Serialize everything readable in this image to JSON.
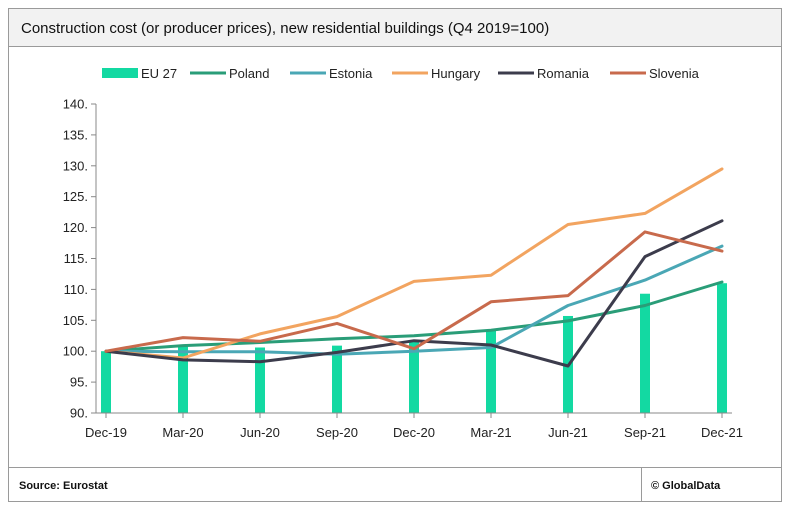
{
  "header": {
    "title": "Construction cost (or producer prices), new residential buildings (Q4 2019=100)"
  },
  "footer": {
    "source": "Source: Eurostat",
    "credit": "© GlobalData"
  },
  "chart_data": {
    "type": "bar+line",
    "title": "Construction cost (or producer prices), new residential buildings (Q4 2019=100)",
    "xlabel": "",
    "ylabel": "",
    "categories": [
      "Dec-19",
      "Mar-20",
      "Jun-20",
      "Sep-20",
      "Dec-20",
      "Mar-21",
      "Jun-21",
      "Sep-21",
      "Dec-21"
    ],
    "ylim": [
      90,
      140
    ],
    "yticks": [
      "90.",
      "95.",
      "100.",
      "105.",
      "110.",
      "115.",
      "120.",
      "125.",
      "130.",
      "135.",
      "140."
    ],
    "ytick_values": [
      90,
      95,
      100,
      105,
      110,
      115,
      120,
      125,
      130,
      135,
      140
    ],
    "grid": false,
    "legend": "top",
    "series": [
      {
        "name": "EU 27",
        "kind": "bar",
        "color": "#13d9a2",
        "values": [
          100.0,
          100.8,
          100.6,
          100.9,
          101.8,
          103.4,
          105.7,
          109.3,
          111.0
        ]
      },
      {
        "name": "Poland",
        "kind": "line",
        "color": "#2a9d78",
        "values": [
          100.0,
          100.9,
          101.4,
          102.0,
          102.5,
          103.4,
          104.9,
          107.4,
          111.2
        ]
      },
      {
        "name": "Estonia",
        "kind": "line",
        "color": "#4aa7b5",
        "values": [
          100.0,
          99.9,
          99.9,
          99.5,
          100.0,
          100.6,
          107.4,
          111.5,
          117.0
        ]
      },
      {
        "name": "Hungary",
        "kind": "line",
        "color": "#f2a460",
        "values": [
          100.0,
          98.9,
          102.8,
          105.6,
          111.3,
          112.3,
          120.5,
          122.3,
          129.5
        ]
      },
      {
        "name": "Romania",
        "kind": "line",
        "color": "#3c3c4c",
        "values": [
          100.0,
          98.6,
          98.3,
          99.8,
          101.7,
          101.0,
          97.6,
          115.3,
          121.1
        ]
      },
      {
        "name": "Slovenia",
        "kind": "line",
        "color": "#c86a4c",
        "values": [
          100.0,
          102.2,
          101.6,
          104.5,
          100.4,
          108.0,
          109.0,
          119.3,
          116.2
        ]
      }
    ]
  }
}
